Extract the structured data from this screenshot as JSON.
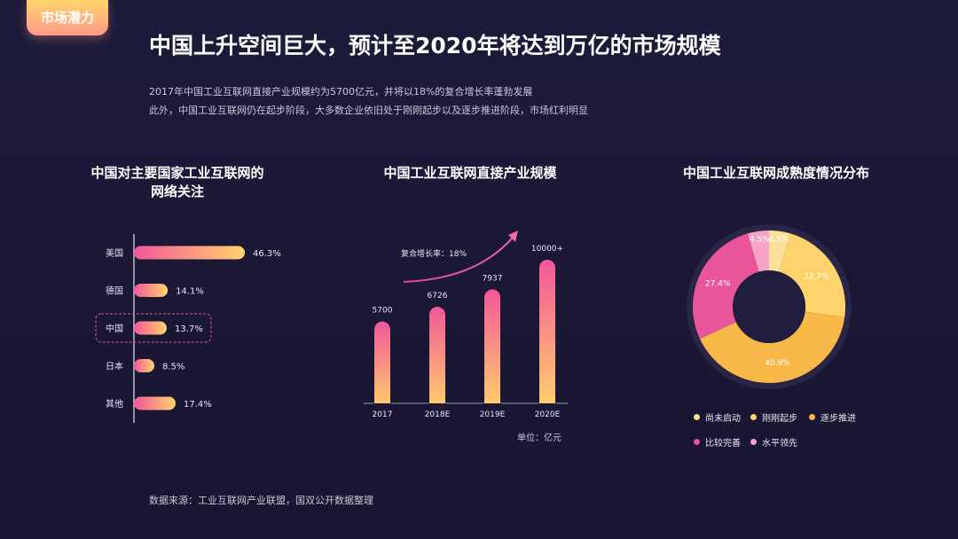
{
  "header": {
    "tag": "市场潜力",
    "title": "中国上升空间巨大，预计至2020年将达到万亿的市场规模",
    "desc1": "2017年中国工业互联网直接产业规模约为5700亿元，并将以18%的复合增长率蓬勃发展",
    "desc2": "此外，中国工业互联网仍在起步阶段，大多数企业依旧处于刚刚起步以及逐步推进阶段，市场红利明显"
  },
  "panels": {
    "left_title_line1": "中国对主要国家工业互联网的",
    "left_title_line2": "网络关注",
    "mid_title": "中国工业互联网直接产业规模",
    "right_title": "中国工业互联网成熟度情况分布",
    "unit": "单位：亿元",
    "growth_label": "复合增长率：18%"
  },
  "source": "数据来源：工业互联网产业联盟，国双公开数据整理",
  "colors": {
    "pink": "#f2579a",
    "yellow": "#ffd36b",
    "orange": "#f7b847",
    "light_yellow": "#fbe099",
    "magenta": "#e8559b",
    "light_pink": "#f7a3c6"
  },
  "chart_data": [
    {
      "type": "bar",
      "orientation": "horizontal",
      "categories": [
        "美国",
        "德国",
        "中国",
        "日本",
        "其他"
      ],
      "values": [
        46.3,
        14.1,
        13.7,
        8.5,
        17.4
      ],
      "value_labels": [
        "46.3%",
        "14.1%",
        "13.7%",
        "8.5%",
        "17.4%"
      ],
      "highlight": "中国"
    },
    {
      "type": "bar",
      "categories": [
        "2017",
        "2018E",
        "2019E",
        "2020E"
      ],
      "values": [
        5700,
        6726,
        7937,
        10000
      ],
      "value_labels": [
        "5700",
        "6726",
        "7937",
        "10000+"
      ]
    },
    {
      "type": "pie",
      "style": "donut",
      "labels": [
        "尚未启动",
        "刚刚起步",
        "逐步推进",
        "比较完善",
        "水平领先"
      ],
      "values": [
        4.5,
        22.7,
        40.9,
        27.4,
        4.5
      ],
      "value_labels": [
        "4.5%",
        "22.7%",
        "40.9%",
        "27.4%",
        "4.5%"
      ],
      "colors": [
        "#fbe099",
        "#ffd36b",
        "#f7b847",
        "#e8559b",
        "#f7a3c6"
      ]
    }
  ]
}
